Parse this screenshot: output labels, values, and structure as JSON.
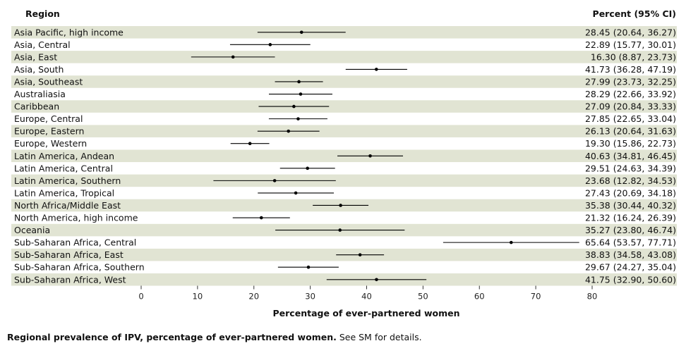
{
  "header": {
    "region_label": "Region",
    "value_label": "Percent (95% CI)"
  },
  "caption": {
    "bold": "Regional prevalence of IPV, percentage of ever-partnered women.",
    "rest": " See SM for details."
  },
  "colors": {
    "band": "#e1e4d3",
    "line": "#000000"
  },
  "chart_data": {
    "type": "forest",
    "xlabel": "Percentage of ever-partnered women",
    "xlim": [
      0,
      80
    ],
    "xticks": [
      0,
      10,
      20,
      30,
      40,
      50,
      60,
      70,
      80
    ],
    "rows": [
      {
        "region": "Asia Pacific, high income",
        "value": 28.45,
        "low": 20.64,
        "high": 36.27,
        "text": "28.45 (20.64, 36.27)"
      },
      {
        "region": "Asia, Central",
        "value": 22.89,
        "low": 15.77,
        "high": 30.01,
        "text": "22.89 (15.77, 30.01)"
      },
      {
        "region": "Asia, East",
        "value": 16.3,
        "low": 8.87,
        "high": 23.73,
        "text": "16.30 (8.87, 23.73)"
      },
      {
        "region": "Asia, South",
        "value": 41.73,
        "low": 36.28,
        "high": 47.19,
        "text": "41.73 (36.28, 47.19)"
      },
      {
        "region": "Asia, Southeast",
        "value": 27.99,
        "low": 23.73,
        "high": 32.25,
        "text": "27.99 (23.73, 32.25)"
      },
      {
        "region": "Australiasia",
        "value": 28.29,
        "low": 22.66,
        "high": 33.92,
        "text": "28.29 (22.66, 33.92)"
      },
      {
        "region": "Caribbean",
        "value": 27.09,
        "low": 20.84,
        "high": 33.33,
        "text": "27.09 (20.84, 33.33)"
      },
      {
        "region": "Europe, Central",
        "value": 27.85,
        "low": 22.65,
        "high": 33.04,
        "text": "27.85 (22.65, 33.04)"
      },
      {
        "region": "Europe, Eastern",
        "value": 26.13,
        "low": 20.64,
        "high": 31.63,
        "text": "26.13 (20.64, 31.63)"
      },
      {
        "region": "Europe, Western",
        "value": 19.3,
        "low": 15.86,
        "high": 22.73,
        "text": "19.30 (15.86, 22.73)"
      },
      {
        "region": "Latin America, Andean",
        "value": 40.63,
        "low": 34.81,
        "high": 46.45,
        "text": "40.63 (34.81, 46.45)"
      },
      {
        "region": "Latin America, Central",
        "value": 29.51,
        "low": 24.63,
        "high": 34.39,
        "text": "29.51 (24.63, 34.39)"
      },
      {
        "region": "Latin America, Southern",
        "value": 23.68,
        "low": 12.82,
        "high": 34.53,
        "text": "23.68 (12.82, 34.53)"
      },
      {
        "region": "Latin America, Tropical",
        "value": 27.43,
        "low": 20.69,
        "high": 34.18,
        "text": "27.43 (20.69, 34.18)"
      },
      {
        "region": "North Africa/Middle East",
        "value": 35.38,
        "low": 30.44,
        "high": 40.32,
        "text": "35.38 (30.44, 40.32)"
      },
      {
        "region": "North America, high income",
        "value": 21.32,
        "low": 16.24,
        "high": 26.39,
        "text": "21.32 (16.24, 26.39)"
      },
      {
        "region": "Oceania",
        "value": 35.27,
        "low": 23.8,
        "high": 46.74,
        "text": "35.27 (23.80, 46.74)"
      },
      {
        "region": "Sub-Saharan Africa, Central",
        "value": 65.64,
        "low": 53.57,
        "high": 77.71,
        "text": "65.64 (53.57, 77.71)"
      },
      {
        "region": "Sub-Saharan Africa, East",
        "value": 38.83,
        "low": 34.58,
        "high": 43.08,
        "text": "38.83 (34.58, 43.08)"
      },
      {
        "region": "Sub-Saharan Africa, Southern",
        "value": 29.67,
        "low": 24.27,
        "high": 35.04,
        "text": "29.67 (24.27, 35.04)"
      },
      {
        "region": "Sub-Saharan Africa, West",
        "value": 41.75,
        "low": 32.9,
        "high": 50.6,
        "text": "41.75 (32.90, 50.60)"
      }
    ]
  }
}
